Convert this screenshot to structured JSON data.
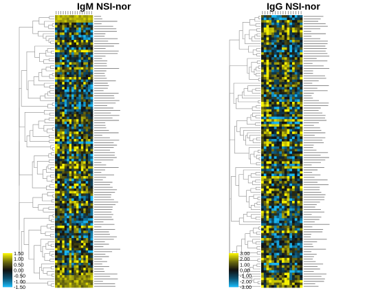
{
  "chart_data": [
    {
      "type": "heatmap",
      "title": "IgM NSI-nor",
      "color_scale": [
        "#f5f000",
        "#6b6a10",
        "#101010",
        "#0e4d6a",
        "#19b4f0"
      ],
      "legend": {
        "placement": "bottom-left",
        "ticks": [
          "1.50",
          "1.00",
          "0.50",
          "0.00",
          "-0.50",
          "-1.00",
          "-1.50"
        ]
      },
      "value_range": [
        -1.5,
        1.5
      ],
      "rows": 110,
      "columns": 16,
      "grid": false,
      "dendrogram": "left"
    },
    {
      "type": "heatmap",
      "title": "IgG NSI-nor",
      "color_scale": [
        "#f5f000",
        "#6b6a10",
        "#101010",
        "#0e4d6a",
        "#19b4f0"
      ],
      "legend": {
        "placement": "bottom-left",
        "ticks": [
          "3.00",
          "2.00",
          "1.00",
          "0.00",
          "-1.00",
          "-2.00",
          "-3.00"
        ]
      },
      "value_range": [
        -3.0,
        3.0
      ],
      "rows": 110,
      "columns": 16,
      "grid": false,
      "dendrogram": "left"
    }
  ]
}
